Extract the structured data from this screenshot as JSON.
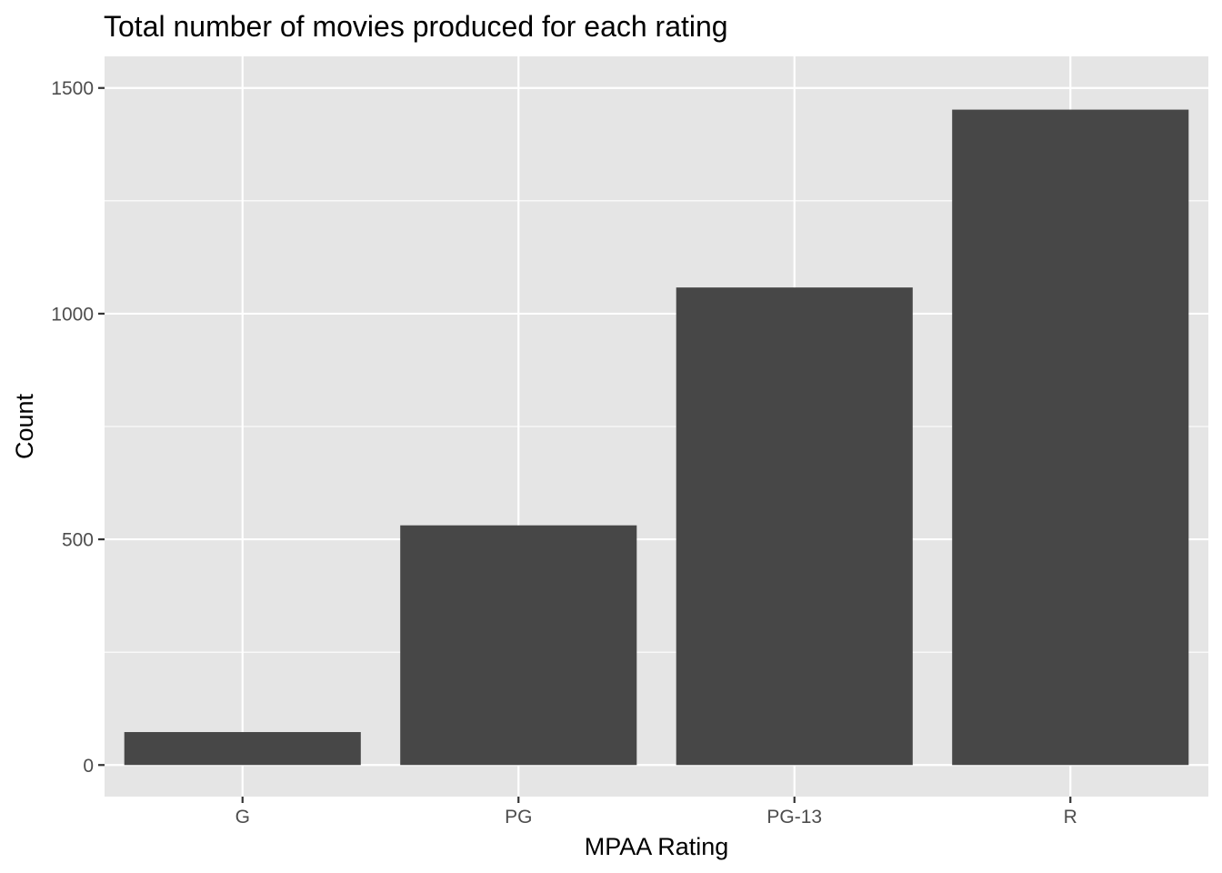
{
  "chart_data": {
    "type": "bar",
    "title": "Total number of movies produced for each rating",
    "xlabel": "MPAA Rating",
    "ylabel": "Count",
    "categories": [
      "G",
      "PG",
      "PG-13",
      "R"
    ],
    "values": [
      73,
      531,
      1058,
      1452
    ],
    "ylim": [
      -70,
      1570
    ],
    "yticks": [
      0,
      500,
      1000,
      1500
    ],
    "ytick_labels": [
      "0",
      "500",
      "1000",
      "1500"
    ],
    "grid": true,
    "legend": "none",
    "colors": {
      "panel_background": "#e5e5e5",
      "grid_line": "#ffffff",
      "bar_fill": "#474747",
      "tick_mark": "#333333"
    }
  }
}
